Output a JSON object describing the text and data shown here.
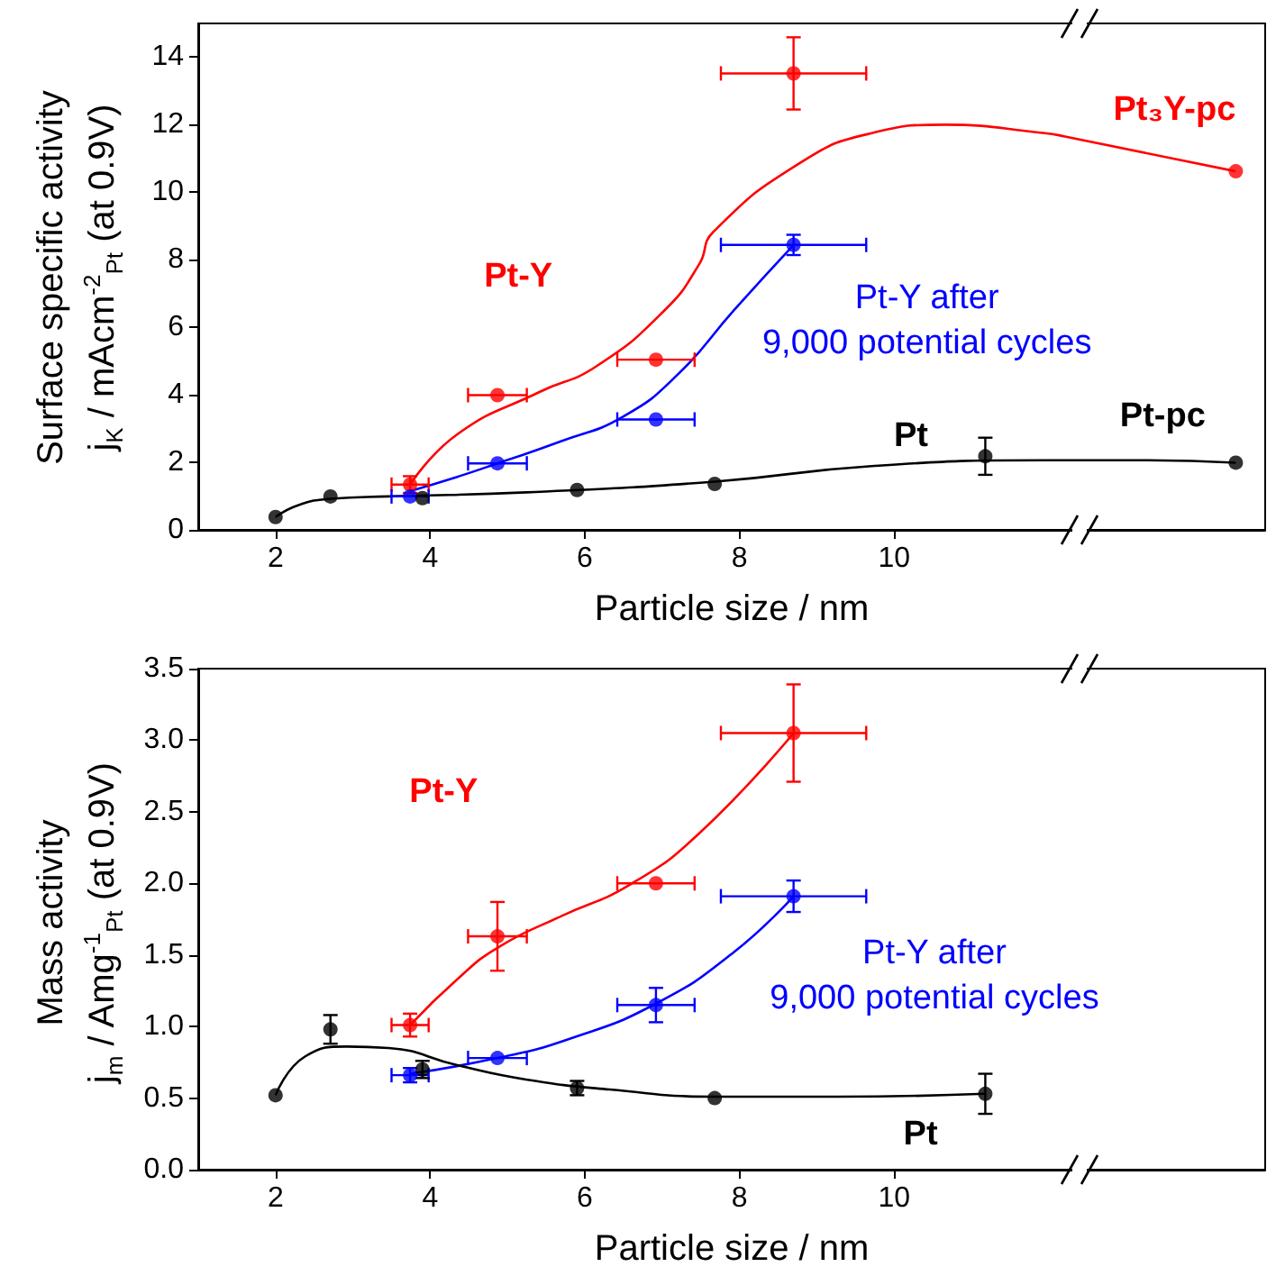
{
  "chart_data": [
    {
      "type": "scatter",
      "xlabel": "Particle size / nm",
      "ylabel": "Surface specific activity\nj$_{K}$ / mAcm$^{-2}$$_{Pt}$ (at 0.9V)",
      "xlim": [
        1,
        14.8
      ],
      "xticks": [
        2,
        4,
        6,
        8,
        10
      ],
      "ylim": [
        0,
        15
      ],
      "yticks": [
        0,
        2,
        4,
        6,
        8,
        10,
        12,
        14
      ],
      "marker": "circle",
      "series": [
        {
          "name": "Pt-Y",
          "color": "#ff0000",
          "x": [
            3.74,
            4.87,
            6.92,
            8.7
          ],
          "values": [
            1.34,
            3.99,
            5.04,
            13.52
          ],
          "errors": [
            0.25,
            null,
            null,
            1.07
          ],
          "xerrors": [
            0.24,
            0.38,
            0.5,
            0.94
          ]
        },
        {
          "name": "Pt-Y after\n9,000 potential cycles",
          "color": "#0000ff",
          "x": [
            3.74,
            4.87,
            6.92,
            8.7
          ],
          "values": [
            0.99,
            1.97,
            3.27,
            8.44
          ],
          "errors": [
            null,
            null,
            null,
            0.3
          ],
          "xerrors": [
            0.24,
            0.38,
            0.5,
            0.94
          ]
        },
        {
          "name": "Pt",
          "color": "#000000",
          "x": [
            2,
            2.71,
            3.9,
            5.9,
            7.68,
            11.18
          ],
          "values": [
            0.38,
            0.99,
            0.94,
            1.18,
            1.36,
            2.18
          ],
          "errors": [
            null,
            null,
            null,
            null,
            null,
            0.55
          ]
        },
        {
          "name": "Pt₃Y-pc",
          "color": "#ff0000",
          "x": [
            14.42
          ],
          "values": [
            10.62
          ]
        },
        {
          "name": "Pt-pc",
          "color": "#000000",
          "x": [
            14.42
          ],
          "values": [
            1.99
          ]
        },
        {
          "type": "line",
          "marker": "none",
          "color": "#ff0000",
          "x": [
            3.74,
            4.35,
            5.42,
            6.14,
            7.03,
            7.48,
            7.66,
            8.82,
            9.71,
            10.65,
            11.95,
            12.21,
            14.42
          ],
          "values": [
            1.34,
            2.83,
            4.09,
            4.83,
            6.5,
            7.87,
            8.82,
            10.92,
            11.75,
            12.0,
            11.75,
            11.65,
            10.62
          ]
        },
        {
          "type": "line",
          "marker": "none",
          "color": "#000000",
          "x": [
            2,
            2.29,
            2.71,
            3.46,
            5.24,
            7.68,
            9.71,
            11.95,
            13.29,
            14.42
          ],
          "values": [
            0.38,
            0.73,
            0.92,
            0.99,
            1.11,
            1.43,
            1.89,
            2.06,
            2.06,
            1.99
          ]
        },
        {
          "type": "line",
          "marker": "none",
          "color": "#0000ff",
          "x": [
            3.74,
            4.35,
            4.87,
            5.69,
            6.5,
            7.21,
            7.93,
            8.7
          ],
          "values": [
            1.15,
            1.57,
            1.97,
            2.62,
            3.36,
            4.62,
            6.51,
            8.44
          ]
        }
      ]
    },
    {
      "type": "scatter",
      "xlabel": "Particle size / nm",
      "ylabel": "Mass activity\nj$_{m}$ / Amg$^{-1}$$_{Pt}$ (at 0.9V)",
      "xlim": [
        1,
        14.8
      ],
      "xticks": [
        2,
        4,
        6,
        8,
        10
      ],
      "ylim": [
        0,
        3.5
      ],
      "yticks": [
        {
          "value": 0,
          "label": "0.0"
        },
        0.5,
        {
          "value": 1,
          "label": "1.0"
        },
        1.5,
        {
          "value": 2,
          "label": "2.0"
        },
        2.5,
        {
          "value": 3,
          "label": "3.0"
        },
        3.5
      ],
      "marker": "circle",
      "series": [
        {
          "name": "Pt-Y",
          "color": "#ff0000",
          "x": [
            3.74,
            4.87,
            6.92,
            8.7
          ],
          "values": [
            1.01,
            1.63,
            2.0,
            3.05
          ],
          "errors": [
            0.08,
            0.24,
            null,
            0.34
          ],
          "xerrors": [
            0.24,
            0.38,
            0.5,
            0.94
          ]
        },
        {
          "name": "Pt-Y after\n9,000 potential cycles",
          "color": "#0000ff",
          "x": [
            3.74,
            4.87,
            6.92,
            8.7
          ],
          "values": [
            0.66,
            0.78,
            1.15,
            1.91
          ],
          "errors": [
            0.05,
            null,
            0.12,
            0.11
          ],
          "xerrors": [
            0.24,
            0.38,
            0.5,
            0.94
          ]
        },
        {
          "name": "Pt",
          "color": "#000000",
          "x": [
            2,
            2.71,
            3.9,
            5.9,
            7.68,
            11.18
          ],
          "values": [
            0.52,
            0.98,
            0.7,
            0.57,
            0.5,
            0.53
          ],
          "errors": [
            null,
            0.1,
            0.06,
            0.05,
            null,
            0.14
          ]
        },
        {
          "type": "line",
          "marker": "none",
          "color": "#ff0000",
          "x": [
            3.74,
            4.35,
            4.87,
            5.69,
            6.58,
            7.48,
            8.7
          ],
          "values": [
            1.01,
            1.33,
            1.55,
            1.77,
            1.99,
            2.35,
            3.05
          ]
        },
        {
          "type": "line",
          "marker": "none",
          "color": "#0000ff",
          "x": [
            3.74,
            4.87,
            5.78,
            6.92,
            7.93,
            8.7
          ],
          "values": [
            0.67,
            0.78,
            0.91,
            1.16,
            1.52,
            1.91
          ]
        },
        {
          "type": "line",
          "marker": "none",
          "color": "#000000",
          "x": [
            2,
            2.38,
            2.92,
            3.46,
            4.35,
            5.24,
            6.32,
            7.68,
            9.27,
            11.18
          ],
          "values": [
            0.52,
            0.79,
            0.86,
            0.85,
            0.73,
            0.63,
            0.56,
            0.51,
            0.51,
            0.53
          ]
        }
      ]
    }
  ]
}
